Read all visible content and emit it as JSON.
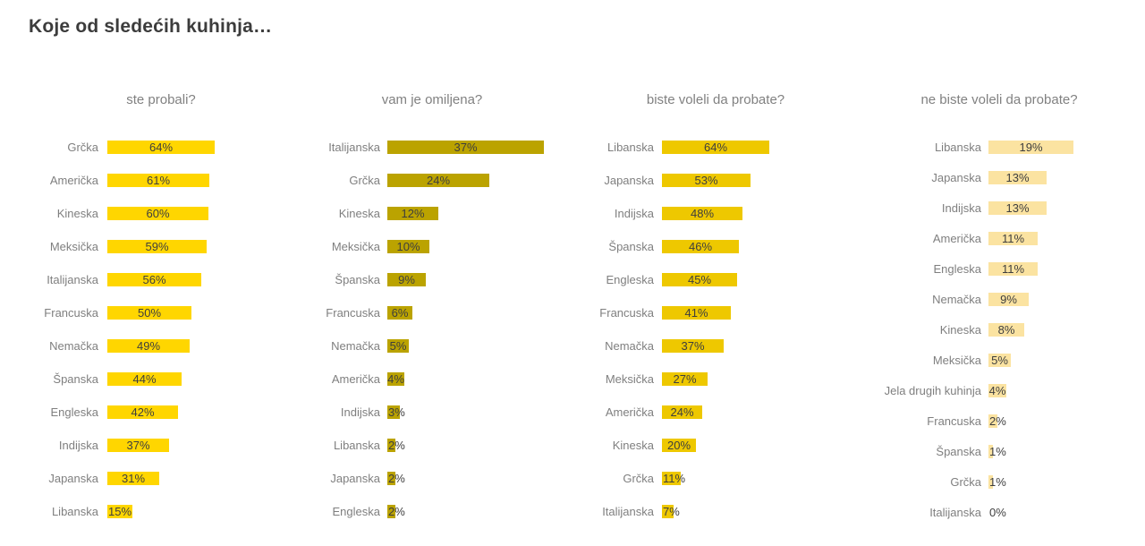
{
  "page_title": "Koje od sledećih kuhinja…",
  "colors": {
    "panel_tried": "#FFD600",
    "panel_favorite": "#BBA300",
    "panel_want_to_try": "#EEC800",
    "panel_dont_want": "#FBE3A1",
    "category_label": "#7f7f7f",
    "value_label": "#3e3e3e",
    "title_text": "#3c3c3c",
    "panel_title_text": "#818181",
    "background": "#ffffff"
  },
  "chart_data": [
    {
      "type": "bar",
      "orientation": "horizontal",
      "title": "ste probali?",
      "unit": "%",
      "xlim": [
        0,
        70
      ],
      "legend": "none",
      "grid": false,
      "bar_color": "#FFD600",
      "categories": [
        "Grčka",
        "Američka",
        "Kineska",
        "Meksička",
        "Italijanska",
        "Francuska",
        "Nemačka",
        "Španska",
        "Engleska",
        "Indijska",
        "Japanska",
        "Libanska"
      ],
      "values": [
        64,
        61,
        60,
        59,
        56,
        50,
        49,
        44,
        42,
        37,
        31,
        15
      ]
    },
    {
      "type": "bar",
      "orientation": "horizontal",
      "title": "vam je omiljena?",
      "unit": "%",
      "xlim": [
        0,
        40
      ],
      "legend": "none",
      "grid": false,
      "bar_color": "#BBA300",
      "categories": [
        "Italijanska",
        "Grčka",
        "Kineska",
        "Meksička",
        "Španska",
        "Francuska",
        "Nemačka",
        "Američka",
        "Indijska",
        "Libanska",
        "Japanska",
        "Engleska"
      ],
      "values": [
        37,
        24,
        12,
        10,
        9,
        6,
        5,
        4,
        3,
        2,
        2,
        2
      ]
    },
    {
      "type": "bar",
      "orientation": "horizontal",
      "title": "biste voleli da probate?",
      "unit": "%",
      "xlim": [
        0,
        70
      ],
      "legend": "none",
      "grid": false,
      "bar_color": "#EEC800",
      "categories": [
        "Libanska",
        "Japanska",
        "Indijska",
        "Španska",
        "Engleska",
        "Francuska",
        "Nemačka",
        "Meksička",
        "Američka",
        "Kineska",
        "Grčka",
        "Italijanska"
      ],
      "values": [
        64,
        53,
        48,
        46,
        45,
        41,
        37,
        27,
        24,
        20,
        11,
        7
      ]
    },
    {
      "type": "bar",
      "orientation": "horizontal",
      "title": "ne biste voleli da probate?",
      "unit": "%",
      "xlim": [
        0,
        20
      ],
      "legend": "none",
      "grid": false,
      "bar_color": "#FBE3A1",
      "categories": [
        "Libanska",
        "Japanska",
        "Indijska",
        "Američka",
        "Engleska",
        "Nemačka",
        "Kineska",
        "Meksička",
        "Jela drugih kuhinja",
        "Francuska",
        "Španska",
        "Grčka",
        "Italijanska"
      ],
      "values": [
        19,
        13,
        13,
        11,
        11,
        9,
        8,
        5,
        4,
        2,
        1,
        1,
        0
      ]
    }
  ]
}
